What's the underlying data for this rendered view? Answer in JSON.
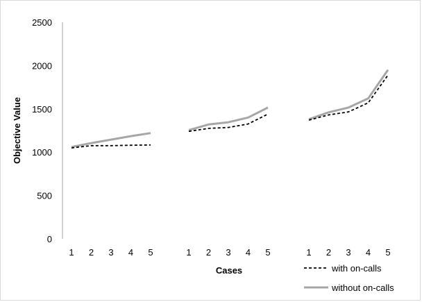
{
  "chart_data": {
    "type": "line",
    "xlabel": "Cases",
    "ylabel": "Objective Value",
    "ylim": [
      0,
      2500
    ],
    "yticks": [
      0,
      500,
      1000,
      1500,
      2000,
      2500
    ],
    "grid": false,
    "legend_position": "bottom-right",
    "groups": [
      {
        "categories": [
          "1",
          "2",
          "3",
          "4",
          "5"
        ],
        "series": [
          {
            "name": "with on-calls",
            "values": [
              1050,
              1075,
              1075,
              1080,
              1083
            ]
          },
          {
            "name": "without on-calls",
            "values": [
              1060,
              1105,
              1145,
              1185,
              1220
            ]
          }
        ]
      },
      {
        "categories": [
          "1",
          "2",
          "3",
          "4",
          "5"
        ],
        "series": [
          {
            "name": "with on-calls",
            "values": [
              1240,
              1275,
              1285,
              1325,
              1440
            ]
          },
          {
            "name": "without on-calls",
            "values": [
              1255,
              1320,
              1345,
              1400,
              1515
            ]
          }
        ]
      },
      {
        "categories": [
          "1",
          "2",
          "3",
          "4",
          "5"
        ],
        "series": [
          {
            "name": "with on-calls",
            "values": [
              1370,
              1430,
              1465,
              1570,
              1890
            ]
          },
          {
            "name": "without on-calls",
            "values": [
              1380,
              1460,
              1515,
              1620,
              1950
            ]
          }
        ]
      }
    ],
    "series_style": [
      {
        "name": "with on-calls",
        "color": "#000000",
        "dash": "dashed"
      },
      {
        "name": "without on-calls",
        "color": "#a6a6a6",
        "dash": "solid"
      }
    ]
  }
}
